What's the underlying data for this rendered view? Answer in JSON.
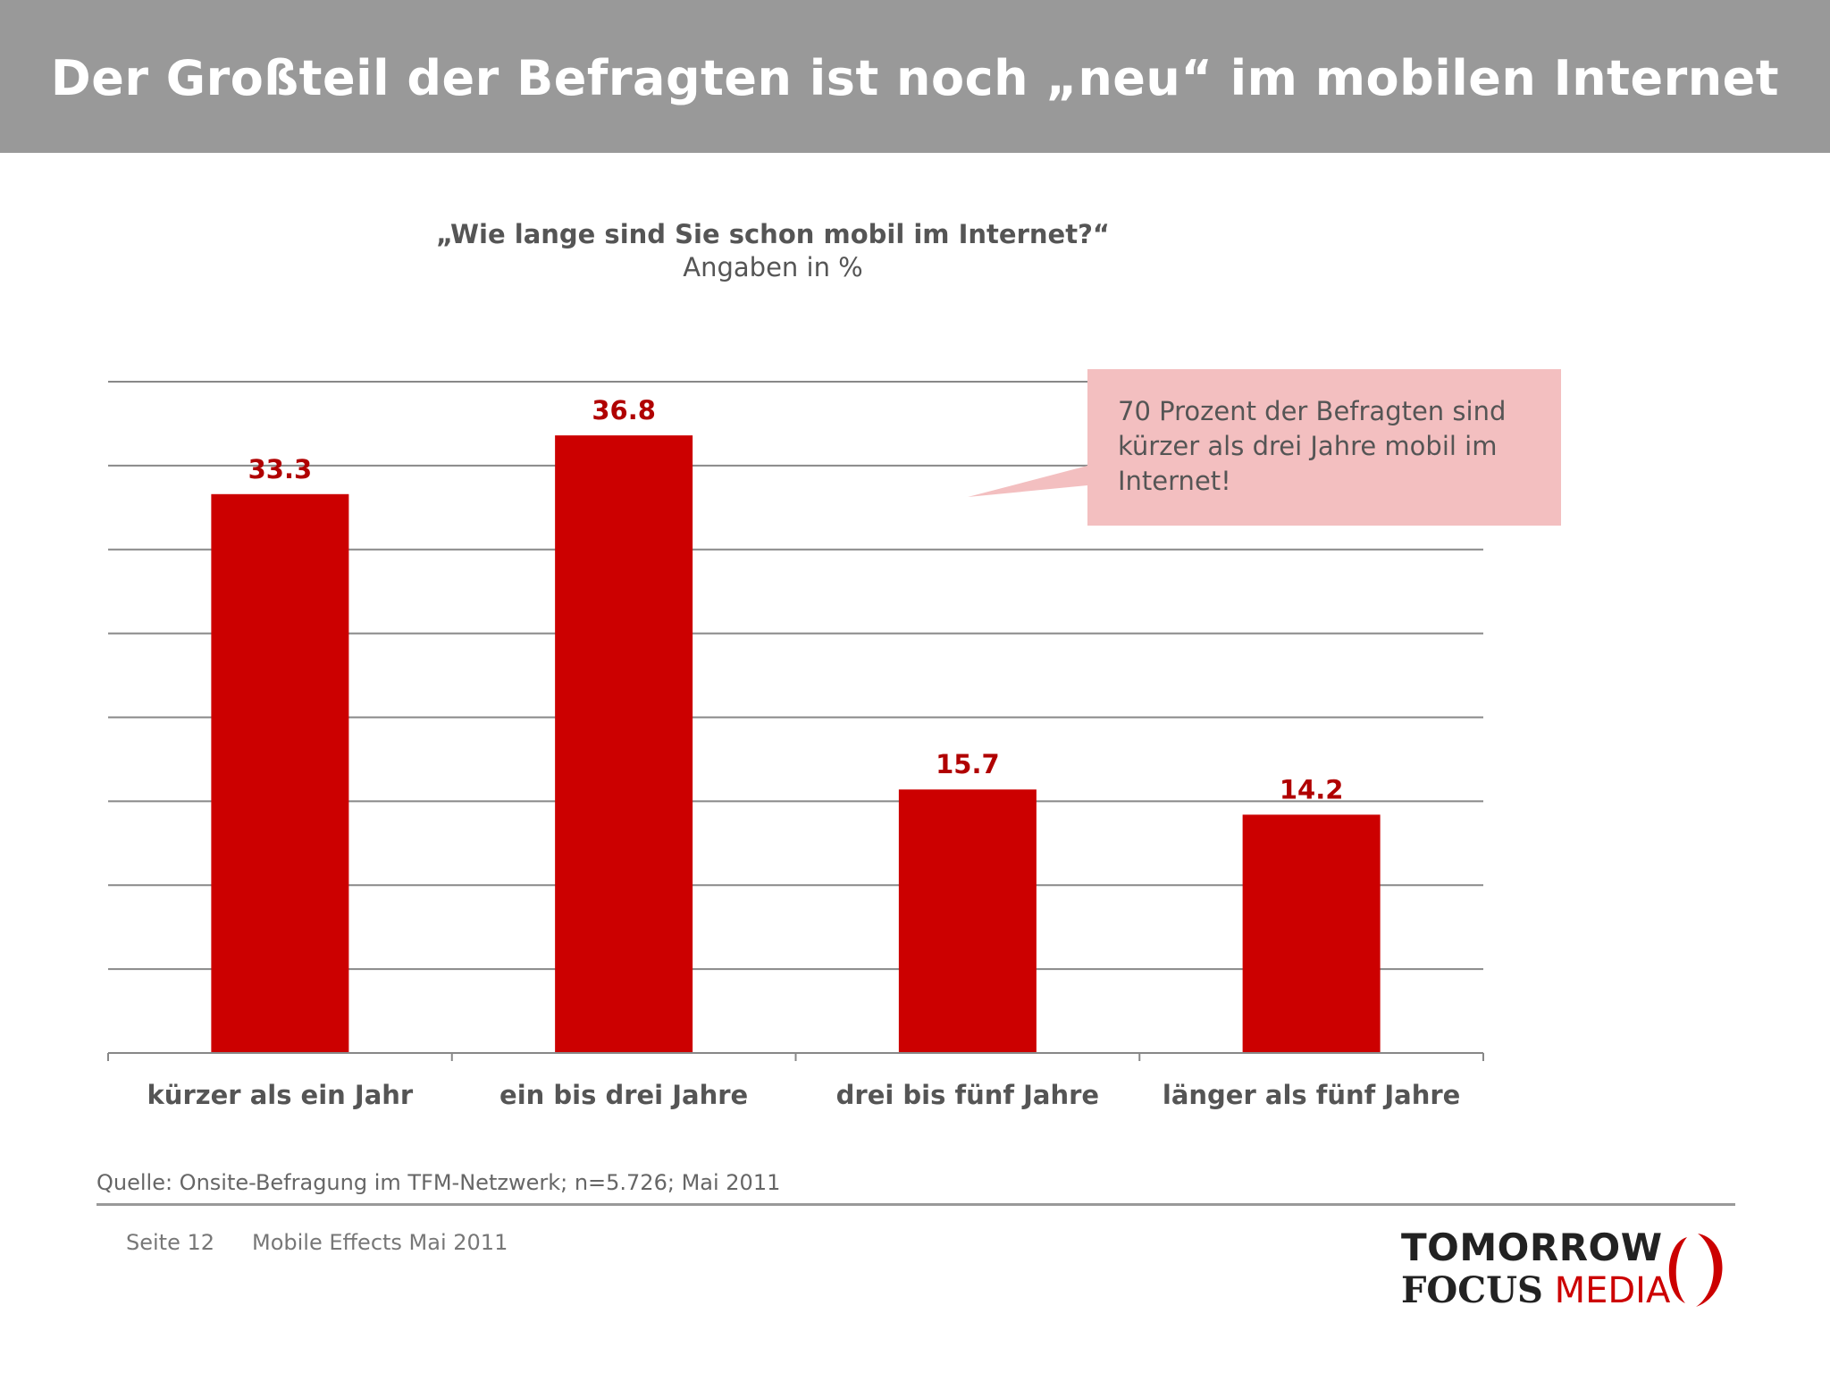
{
  "header": {
    "title": "Der Großteil der Befragten ist noch „neu“ im mobilen Internet"
  },
  "question": "„Wie lange sind Sie schon mobil im Internet?“",
  "unit_note": "Angaben in %",
  "callout": {
    "text": "70 Prozent der Befragten sind kürzer als drei Jahre mobil im Internet!"
  },
  "chart_data": {
    "type": "bar",
    "categories": [
      "kürzer als ein Jahr",
      "ein bis drei Jahre",
      "drei bis fünf Jahre",
      "länger als fünf Jahre"
    ],
    "values": [
      33.3,
      36.8,
      15.7,
      14.2
    ],
    "value_labels": [
      "33.3",
      "36.8",
      "15.7",
      "14.2"
    ],
    "ylim": [
      0,
      40
    ],
    "y_gridlines": [
      5,
      10,
      15,
      20,
      25,
      30,
      35,
      40
    ],
    "grid": true,
    "bar_color": "#cc0000",
    "label_color": "#b00000",
    "title": "",
    "xlabel": "",
    "ylabel": ""
  },
  "source": "Quelle: Onsite-Befragung im TFM-Netzwerk; n=5.726; Mai 2011",
  "footer": {
    "page": "Seite 12",
    "title": "Mobile Effects Mai 2011"
  },
  "logo": {
    "line1": "TOMORROW",
    "line2_a": "FOCUS",
    "line2_b": "MEDIA"
  }
}
